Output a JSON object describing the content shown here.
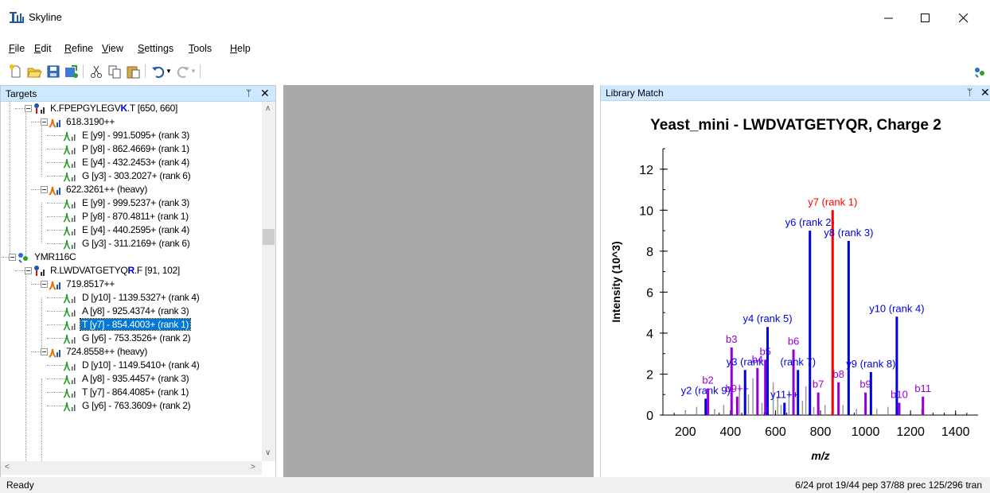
{
  "window": {
    "title": "Skyline"
  },
  "menu": [
    {
      "key": "F",
      "rest": "ile"
    },
    {
      "key": "E",
      "rest": "dit"
    },
    {
      "key": "R",
      "rest": "efine"
    },
    {
      "key": "V",
      "rest": "iew"
    },
    {
      "key": "S",
      "rest": "ettings"
    },
    {
      "key": "T",
      "rest": "ools"
    },
    {
      "key": "H",
      "rest": "elp"
    }
  ],
  "toolbar": {
    "icons": [
      "new-file-icon",
      "open-folder-icon",
      "save-icon",
      "import-icon",
      "cut-icon",
      "copy-icon",
      "paste-icon",
      "undo-icon",
      "redo-icon"
    ]
  },
  "targets": {
    "title": "Targets",
    "pin": "ᛘ",
    "close": "✕",
    "nodes": [
      {
        "type": "peptide",
        "indent": 2,
        "pre": "K.FPEPGYLEGV",
        "mod": "K",
        "post": ".T [650, 660]"
      },
      {
        "type": "precursor",
        "indent": 3,
        "text": "618.3190++"
      },
      {
        "type": "transition",
        "indent": 4,
        "text": "E [y9] - 991.5095+ (rank 3)"
      },
      {
        "type": "transition",
        "indent": 4,
        "text": "P [y8] - 862.4669+ (rank 1)"
      },
      {
        "type": "transition",
        "indent": 4,
        "text": "E [y4] - 432.2453+ (rank 4)"
      },
      {
        "type": "transition",
        "indent": 4,
        "text": "G [y3] - 303.2027+ (rank 6)"
      },
      {
        "type": "precursor",
        "indent": 3,
        "text": "622.3261++ (heavy)"
      },
      {
        "type": "transition",
        "indent": 4,
        "text": "E [y9] - 999.5237+ (rank 3)"
      },
      {
        "type": "transition",
        "indent": 4,
        "text": "P [y8] - 870.4811+ (rank 1)"
      },
      {
        "type": "transition",
        "indent": 4,
        "text": "E [y4] - 440.2595+ (rank 4)"
      },
      {
        "type": "transition",
        "indent": 4,
        "text": "G [y3] - 311.2169+ (rank 6)"
      },
      {
        "type": "protein",
        "indent": 1,
        "text": "YMR116C"
      },
      {
        "type": "peptide",
        "indent": 2,
        "pre": "R.LWDVATGETYQ",
        "mod": "R",
        "post": ".F [91, 102]"
      },
      {
        "type": "precursor",
        "indent": 3,
        "text": "719.8517++"
      },
      {
        "type": "transition",
        "indent": 4,
        "text": "D [y10] - 1139.5327+ (rank 4)"
      },
      {
        "type": "transition",
        "indent": 4,
        "text": "A [y8] - 925.4374+ (rank 3)"
      },
      {
        "type": "transition",
        "indent": 4,
        "text": "T [y7] - 854.4003+ (rank 1)",
        "selected": true
      },
      {
        "type": "transition",
        "indent": 4,
        "text": "G [y6] - 753.3526+ (rank 2)"
      },
      {
        "type": "precursor",
        "indent": 3,
        "text": "724.8558++ (heavy)"
      },
      {
        "type": "transition",
        "indent": 4,
        "text": "D [y10] - 1149.5410+ (rank 4)"
      },
      {
        "type": "transition",
        "indent": 4,
        "text": "A [y8] - 935.4457+ (rank 3)"
      },
      {
        "type": "transition",
        "indent": 4,
        "text": "T [y7] - 864.4085+ (rank 1)"
      },
      {
        "type": "transition",
        "indent": 4,
        "text": "G [y6] - 763.3609+ (rank 2)"
      }
    ]
  },
  "library_match": {
    "title": "Library Match",
    "pin": "ᛘ",
    "close": "✕"
  },
  "chart_data": {
    "type": "bar",
    "title": "Yeast_mini - LWDVATGETYQR, Charge 2",
    "xlabel": "m/z",
    "ylabel": "Intensity (10^3)",
    "xlim": [
      100,
      1500
    ],
    "ylim": [
      0,
      13
    ],
    "xticks": [
      200,
      400,
      600,
      800,
      1000,
      1200,
      1400
    ],
    "yticks": [
      0,
      2,
      4,
      6,
      8,
      10,
      12
    ],
    "colors": {
      "y": "#0000e0",
      "b": "#9400d3",
      "selected": "#ff0000",
      "other": "#999999"
    },
    "peaks": [
      {
        "mz": 290,
        "intensity": 0.8,
        "ion": "y",
        "label": "y2 (rank 9)"
      },
      {
        "mz": 300,
        "intensity": 1.3,
        "ion": "b",
        "label": "b2"
      },
      {
        "mz": 405,
        "intensity": 3.3,
        "ion": "b",
        "label": "b3"
      },
      {
        "mz": 430,
        "intensity": 0.9,
        "ion": "b",
        "label": "b9++"
      },
      {
        "mz": 465,
        "intensity": 2.2,
        "ion": "y",
        "label": "y3 (rank"
      },
      {
        "mz": 520,
        "intensity": 2.3,
        "ion": "b",
        "label": "b4"
      },
      {
        "mz": 555,
        "intensity": 2.7,
        "ion": "b",
        "label": "b5"
      },
      {
        "mz": 565,
        "intensity": 4.3,
        "ion": "y",
        "label": "y4 (rank 5)"
      },
      {
        "mz": 640,
        "intensity": 0.6,
        "ion": "y",
        "label": "y11++"
      },
      {
        "mz": 680,
        "intensity": 3.2,
        "ion": "b",
        "label": "b6"
      },
      {
        "mz": 700,
        "intensity": 2.2,
        "ion": "y",
        "label": "(rank 7)"
      },
      {
        "mz": 753,
        "intensity": 9.0,
        "ion": "y",
        "label": "y6 (rank 2)"
      },
      {
        "mz": 790,
        "intensity": 1.1,
        "ion": "b",
        "label": "b7"
      },
      {
        "mz": 854,
        "intensity": 10.0,
        "ion": "selected",
        "label": "y7 (rank 1)"
      },
      {
        "mz": 880,
        "intensity": 1.6,
        "ion": "b",
        "label": "b8"
      },
      {
        "mz": 925,
        "intensity": 8.5,
        "ion": "y",
        "label": "y8 (rank 3)"
      },
      {
        "mz": 1000,
        "intensity": 1.1,
        "ion": "b",
        "label": "b9"
      },
      {
        "mz": 1024,
        "intensity": 2.1,
        "ion": "y",
        "label": "y9 (rank 8)"
      },
      {
        "mz": 1139,
        "intensity": 4.8,
        "ion": "y",
        "label": "y10 (rank 4)"
      },
      {
        "mz": 1150,
        "intensity": 0.6,
        "ion": "b",
        "label": "b10"
      },
      {
        "mz": 1255,
        "intensity": 0.9,
        "ion": "b",
        "label": "b11"
      }
    ],
    "noise_peaks": [
      {
        "mz": 200,
        "intensity": 0.2
      },
      {
        "mz": 250,
        "intensity": 0.4
      },
      {
        "mz": 330,
        "intensity": 0.3
      },
      {
        "mz": 370,
        "intensity": 0.5
      },
      {
        "mz": 440,
        "intensity": 1.5
      },
      {
        "mz": 480,
        "intensity": 1.0
      },
      {
        "mz": 500,
        "intensity": 1.8
      },
      {
        "mz": 540,
        "intensity": 0.6
      },
      {
        "mz": 590,
        "intensity": 1.6
      },
      {
        "mz": 610,
        "intensity": 0.9
      },
      {
        "mz": 625,
        "intensity": 0.5
      },
      {
        "mz": 660,
        "intensity": 1.2
      },
      {
        "mz": 720,
        "intensity": 0.7
      },
      {
        "mz": 735,
        "intensity": 1.4
      },
      {
        "mz": 770,
        "intensity": 0.4
      },
      {
        "mz": 820,
        "intensity": 0.5
      },
      {
        "mz": 900,
        "intensity": 0.5
      },
      {
        "mz": 960,
        "intensity": 0.3
      },
      {
        "mz": 1050,
        "intensity": 0.3
      },
      {
        "mz": 1100,
        "intensity": 0.4
      },
      {
        "mz": 1250,
        "intensity": 0.3
      }
    ]
  },
  "status": {
    "left": "Ready",
    "right": "6/24 prot  19/44 pep  37/88 prec  125/296 tran"
  }
}
